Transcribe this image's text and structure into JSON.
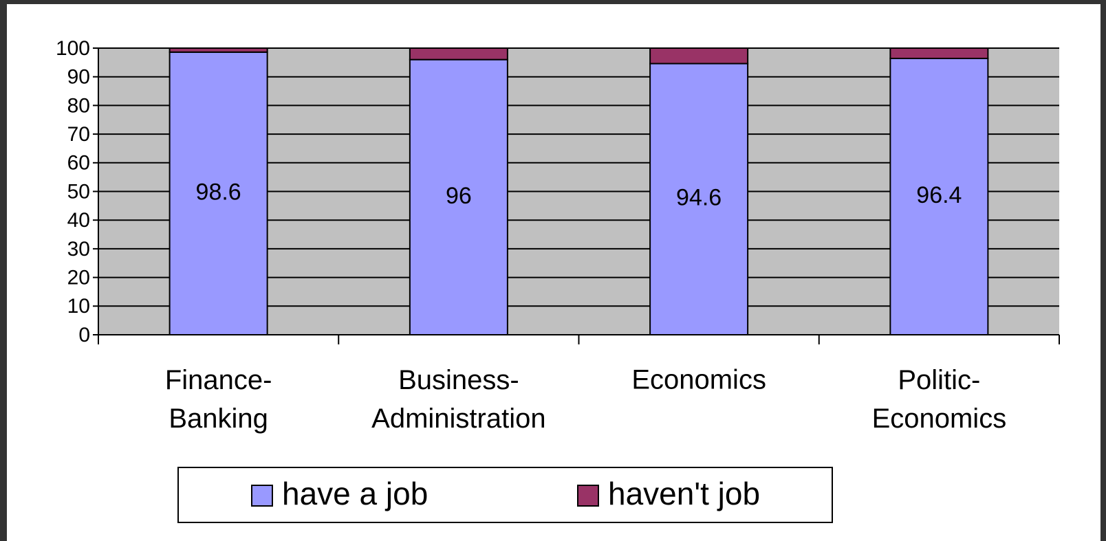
{
  "chart_data": {
    "type": "stacked_bar",
    "categories": [
      "Finance-Banking",
      "Business-Administration",
      "Economics",
      "Politic-Economics"
    ],
    "series": [
      {
        "name": "have a job",
        "color": "#9999ff",
        "values": [
          98.6,
          96,
          94.6,
          96.4
        ]
      },
      {
        "name": "haven't job",
        "color": "#993366",
        "values": [
          1.4,
          4,
          5.4,
          3.6
        ]
      }
    ],
    "data_labels_series": 0,
    "ylim": [
      0,
      100
    ],
    "yticks": [
      0,
      10,
      20,
      30,
      40,
      50,
      60,
      70,
      80,
      90,
      100
    ],
    "grid": true,
    "plot_background": "#c0c0c0",
    "legend": "bottom"
  }
}
